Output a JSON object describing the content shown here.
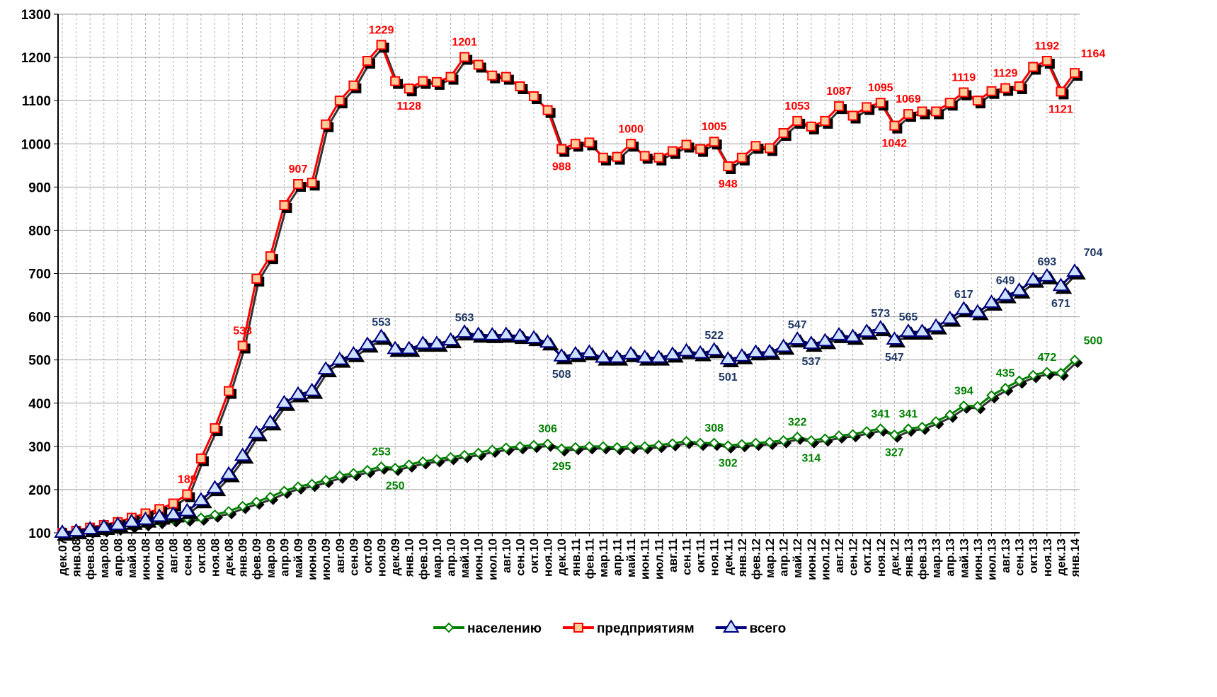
{
  "chart_data": {
    "type": "line",
    "categories": [
      "дек.07",
      "янв.08",
      "фев.08",
      "мар.08",
      "апр.08",
      "май.08",
      "июн.08",
      "июл.08",
      "авг.08",
      "сен.08",
      "окт.08",
      "ноя.08",
      "дек.08",
      "янв.09",
      "фев.09",
      "мар.09",
      "апр.09",
      "май.09",
      "июн.09",
      "июл.09",
      "авг.09",
      "сен.09",
      "окт.09",
      "ноя.09",
      "дек.09",
      "янв.10",
      "фев.10",
      "мар.10",
      "апр.10",
      "май.10",
      "июн.10",
      "июл.10",
      "авг.10",
      "сен.10",
      "окт.10",
      "ноя.10",
      "дек.10",
      "янв.11",
      "фев.11",
      "мар.11",
      "апр.11",
      "май.11",
      "июн.11",
      "июл.11",
      "авг.11",
      "сен.11",
      "окт.11",
      "ноя.11",
      "дек.11",
      "янв.12",
      "фев.12",
      "мар.12",
      "апр.12",
      "май.12",
      "июн.12",
      "июл.12",
      "авг.12",
      "сен.12",
      "окт.12",
      "ноя.12",
      "дек.12",
      "янв.13",
      "фев.13",
      "мар.13",
      "апр.13",
      "май.13",
      "июн.13",
      "июл.13",
      "авг.13",
      "сен.13",
      "окт.13",
      "ноя.13",
      "дек.13",
      "янв.14"
    ],
    "series": [
      {
        "name": "населению",
        "color": "#008000",
        "marker": "diamond",
        "label_color": "#008000",
        "values": [
          100,
          102,
          105,
          108,
          112,
          117,
          122,
          127,
          131,
          133,
          135,
          142,
          150,
          162,
          172,
          183,
          197,
          207,
          213,
          222,
          232,
          238,
          245,
          253,
          250,
          258,
          265,
          270,
          275,
          280,
          285,
          292,
          297,
          300,
          303,
          306,
          295,
          298,
          300,
          300,
          298,
          300,
          300,
          303,
          307,
          312,
          308,
          308,
          302,
          305,
          308,
          310,
          314,
          322,
          314,
          318,
          325,
          328,
          335,
          341,
          327,
          341,
          345,
          358,
          373,
          394,
          393,
          418,
          435,
          452,
          465,
          472,
          470,
          500
        ],
        "value_labels": [
          null,
          null,
          null,
          null,
          null,
          null,
          null,
          null,
          null,
          null,
          null,
          null,
          null,
          null,
          null,
          null,
          null,
          null,
          null,
          null,
          null,
          null,
          null,
          "253",
          "250",
          null,
          null,
          null,
          null,
          null,
          null,
          null,
          null,
          null,
          null,
          "306",
          "295",
          null,
          null,
          null,
          null,
          null,
          null,
          null,
          null,
          null,
          null,
          "308",
          "302",
          null,
          null,
          null,
          null,
          "322",
          "314",
          null,
          null,
          null,
          null,
          "341",
          "327",
          "341",
          null,
          null,
          null,
          "394",
          null,
          null,
          "435",
          null,
          null,
          "472",
          null,
          "500"
        ]
      },
      {
        "name": "предприятиям",
        "color": "#ff0000",
        "marker": "square",
        "marker_fill": "#ffcc99",
        "label_color": "#ff0000",
        "values": [
          100,
          105,
          112,
          118,
          125,
          135,
          145,
          155,
          168,
          189,
          272,
          342,
          428,
          533,
          688,
          740,
          858,
          907,
          910,
          1045,
          1100,
          1135,
          1192,
          1229,
          1145,
          1128,
          1145,
          1143,
          1155,
          1201,
          1183,
          1158,
          1155,
          1133,
          1110,
          1078,
          988,
          1000,
          1003,
          968,
          970,
          1000,
          972,
          968,
          983,
          998,
          988,
          1005,
          948,
          968,
          995,
          990,
          1025,
          1053,
          1040,
          1053,
          1087,
          1065,
          1085,
          1095,
          1042,
          1069,
          1075,
          1075,
          1095,
          1119,
          1100,
          1122,
          1129,
          1133,
          1178,
          1192,
          1121,
          1164
        ],
        "value_labels": [
          null,
          null,
          null,
          null,
          null,
          null,
          null,
          null,
          null,
          "189",
          null,
          null,
          null,
          "533",
          null,
          null,
          null,
          "907",
          null,
          null,
          null,
          null,
          null,
          "1229",
          null,
          "1128",
          null,
          null,
          null,
          "1201",
          null,
          null,
          null,
          null,
          null,
          null,
          "988",
          null,
          null,
          null,
          null,
          "1000",
          null,
          null,
          null,
          null,
          null,
          "1005",
          "948",
          null,
          null,
          null,
          null,
          "1053",
          null,
          null,
          "1087",
          null,
          null,
          "1095",
          "1042",
          "1069",
          null,
          null,
          null,
          "1119",
          null,
          null,
          "1129",
          null,
          null,
          "1192",
          "1121",
          "1164"
        ]
      },
      {
        "name": "всего",
        "color": "#000080",
        "marker": "triangle",
        "marker_fill": "#cce0ff",
        "label_color": "#1f3864",
        "values": [
          100,
          103,
          108,
          113,
          118,
          125,
          130,
          137,
          142,
          150,
          175,
          203,
          235,
          278,
          330,
          355,
          400,
          420,
          428,
          478,
          500,
          513,
          535,
          553,
          525,
          525,
          537,
          537,
          545,
          563,
          558,
          557,
          558,
          555,
          550,
          540,
          508,
          513,
          517,
          505,
          505,
          513,
          505,
          505,
          512,
          520,
          515,
          522,
          501,
          508,
          517,
          518,
          530,
          547,
          537,
          543,
          557,
          553,
          565,
          573,
          547,
          565,
          565,
          577,
          595,
          617,
          610,
          632,
          649,
          660,
          685,
          693,
          671,
          704
        ],
        "value_labels": [
          null,
          null,
          null,
          null,
          null,
          null,
          null,
          null,
          null,
          null,
          null,
          null,
          null,
          null,
          null,
          null,
          null,
          null,
          null,
          null,
          null,
          null,
          null,
          "553",
          null,
          null,
          null,
          null,
          null,
          "563",
          null,
          null,
          null,
          null,
          null,
          null,
          "508",
          null,
          null,
          null,
          null,
          null,
          null,
          null,
          null,
          null,
          null,
          "522",
          "501",
          null,
          null,
          null,
          null,
          "547",
          "537",
          null,
          null,
          null,
          null,
          "573",
          "547",
          "565",
          null,
          null,
          null,
          "617",
          null,
          null,
          "649",
          null,
          null,
          "693",
          "671",
          "704"
        ]
      }
    ],
    "ylim": [
      100,
      1300
    ],
    "yticks": [
      100,
      200,
      300,
      400,
      500,
      600,
      700,
      800,
      900,
      1000,
      1100,
      1200,
      1300
    ],
    "grid": true,
    "legend": "bottom"
  }
}
